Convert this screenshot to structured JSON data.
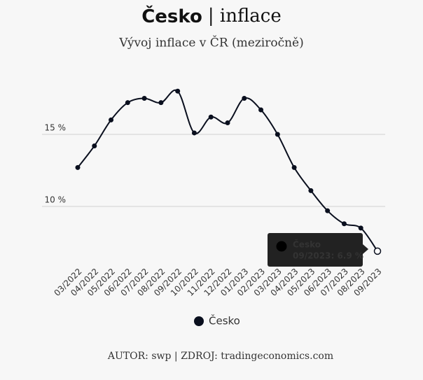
{
  "chart_data": {
    "type": "line",
    "title": "Česko",
    "title_suffix": "| inflace",
    "subtitle": "Vývoj inflace v ČR (meziročně)",
    "categories": [
      "03/2022",
      "04/2022",
      "05/2022",
      "06/2022",
      "07/2022",
      "08/2022",
      "09/2022",
      "10/2022",
      "11/2022",
      "12/2022",
      "01/2023",
      "02/2023",
      "03/2023",
      "04/2023",
      "05/2023",
      "06/2023",
      "07/2023",
      "08/2023",
      "09/2023"
    ],
    "series": [
      {
        "name": "Česko",
        "color": "#0a0f1e",
        "values": [
          12.7,
          14.2,
          16.0,
          17.2,
          17.5,
          17.2,
          18.0,
          15.1,
          16.2,
          15.8,
          17.5,
          16.7,
          15.0,
          12.7,
          11.1,
          9.7,
          8.8,
          8.5,
          6.9
        ]
      }
    ],
    "ylim": [
      6,
      20
    ],
    "yticks": [
      {
        "value": 10,
        "label": "10 %"
      },
      {
        "value": 15,
        "label": "15 %"
      }
    ],
    "grid": true,
    "tooltip": {
      "title": "Česko",
      "text": "09/2023: 6.9 %"
    },
    "footer": "AUTOR: swp | ZDROJ: tradingeconomics.com"
  }
}
